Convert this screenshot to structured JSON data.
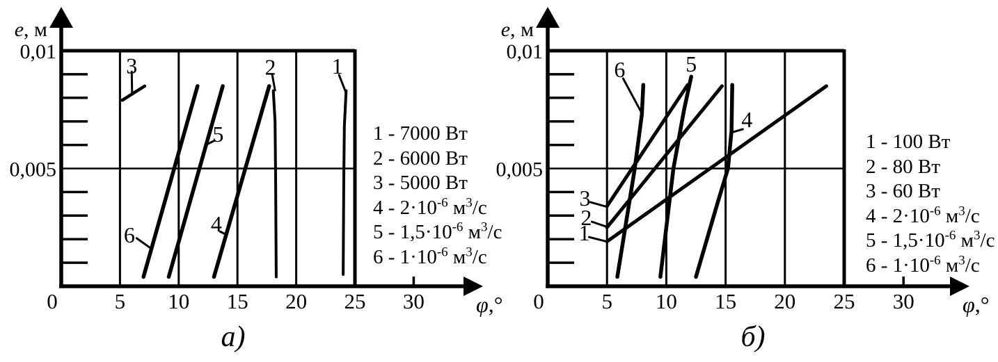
{
  "figure": {
    "background": "#ffffff",
    "ink": "#000000"
  },
  "chart_data": [
    {
      "id": "a",
      "type": "line",
      "caption": "а)",
      "xlabel": "φ,°",
      "ylabel": "e, м",
      "xlim": [
        0,
        25
      ],
      "ylim": [
        0,
        0.01
      ],
      "grid": "major-box",
      "legend_position": "right-of-plot",
      "xticks": [
        0,
        5,
        10,
        15,
        20,
        25,
        30
      ],
      "xgrid": [
        5,
        10,
        15,
        20
      ],
      "ytick_labels": [
        {
          "value": 0.01,
          "label": "0,01"
        },
        {
          "value": 0.005,
          "label": "0,005"
        }
      ],
      "minor_yticks": [
        0.001,
        0.002,
        0.003,
        0.004,
        0.006,
        0.007,
        0.008,
        0.009
      ],
      "series": [
        {
          "name": "1",
          "value": "7000 Вт",
          "width": 4,
          "points": [
            [
              24.0,
              0.0005
            ],
            [
              24.05,
              0.0045
            ],
            [
              24.1,
              0.0068
            ],
            [
              24.25,
              0.0083
            ]
          ]
        },
        {
          "name": "2",
          "value": "6000 Вт",
          "width": 4,
          "points": [
            [
              18.3,
              0.0004
            ],
            [
              18.25,
              0.0045
            ],
            [
              18.2,
              0.007
            ],
            [
              18.05,
              0.0083
            ]
          ]
        },
        {
          "name": "3",
          "value": "5000 Вт",
          "width": 4.5,
          "points": [
            [
              5.2,
              0.0079
            ],
            [
              7.1,
              0.0085
            ]
          ]
        },
        {
          "name": "4",
          "value": "2·10⁻⁶ м³/с",
          "width": 5.5,
          "points": [
            [
              13.0,
              0.0004
            ],
            [
              17.7,
              0.0085
            ]
          ]
        },
        {
          "name": "5",
          "value": "1,5·10⁻⁶ м³/с",
          "width": 5.5,
          "points": [
            [
              9.15,
              0.0004
            ],
            [
              13.75,
              0.0085
            ]
          ]
        },
        {
          "name": "6",
          "value": "1·10⁻⁶ м³/с",
          "width": 5.5,
          "points": [
            [
              7.0,
              0.0004
            ],
            [
              11.6,
              0.0085
            ]
          ]
        }
      ],
      "labels": [
        {
          "text": "1",
          "x": 23.5,
          "y": 0.00935,
          "leader": [
            [
              23.65,
              0.00897
            ],
            [
              24.22,
              0.00824
            ]
          ]
        },
        {
          "text": "2",
          "x": 17.8,
          "y": 0.0093,
          "leader": [
            [
              17.95,
              0.009
            ],
            [
              18.2,
              0.00832
            ]
          ]
        },
        {
          "text": "3",
          "x": 6.0,
          "y": 0.00937,
          "leader": [
            [
              6.0,
              0.00911
            ],
            [
              6.03,
              0.0082
            ]
          ]
        },
        {
          "text": "4",
          "x": 13.2,
          "y": 0.00266,
          "leader": [
            [
              13.5,
              0.00233
            ],
            [
              13.97,
              0.00221
            ]
          ]
        },
        {
          "text": "5",
          "x": 13.35,
          "y": 0.00646,
          "leader": [
            [
              13.05,
              0.00619
            ],
            [
              12.4,
              0.00602
            ]
          ]
        },
        {
          "text": "6",
          "x": 5.8,
          "y": 0.00218,
          "leader": [
            [
              6.42,
              0.00204
            ],
            [
              7.6,
              0.00162
            ]
          ]
        }
      ],
      "legend_rows": [
        [
          {
            "t": "1 - 7000 Вт"
          }
        ],
        [
          {
            "t": "2 - 6000 Вт"
          }
        ],
        [
          {
            "t": "3 - 5000 Вт"
          }
        ],
        [
          {
            "t": "4 - 2·10"
          },
          {
            "s": "-6"
          },
          {
            "t": " м"
          },
          {
            "s": "3"
          },
          {
            "t": "/с"
          }
        ],
        [
          {
            "t": "5 - 1,5·10"
          },
          {
            "s": "-6"
          },
          {
            "t": " м"
          },
          {
            "s": "3"
          },
          {
            "t": "/с"
          }
        ],
        [
          {
            "t": "6 - 1·10"
          },
          {
            "s": "-6"
          },
          {
            "t": " м"
          },
          {
            "s": "3"
          },
          {
            "t": "/с"
          }
        ]
      ]
    },
    {
      "id": "b",
      "type": "line",
      "caption": "б)",
      "xlabel": "φ,°",
      "ylabel": "e, м",
      "xlim": [
        0,
        25
      ],
      "ylim": [
        0,
        0.01
      ],
      "grid": "major-box",
      "legend_position": "right-of-plot",
      "xticks": [
        0,
        5,
        10,
        15,
        20,
        25,
        30
      ],
      "xgrid": [
        5,
        10,
        15,
        20
      ],
      "ytick_labels": [
        {
          "value": 0.01,
          "label": "0,01"
        },
        {
          "value": 0.005,
          "label": "0,005"
        }
      ],
      "minor_yticks": [
        0.001,
        0.002,
        0.003,
        0.004,
        0.006,
        0.007,
        0.008,
        0.009
      ],
      "series": [
        {
          "name": "1",
          "value": "100 Вт",
          "width": 5,
          "points": [
            [
              5.0,
              0.0019
            ],
            [
              23.5,
              0.0085
            ]
          ]
        },
        {
          "name": "2",
          "value": "80 Вт",
          "width": 5,
          "points": [
            [
              5.0,
              0.0025
            ],
            [
              14.7,
              0.0085
            ]
          ]
        },
        {
          "name": "3",
          "value": "60 Вт",
          "width": 5,
          "points": [
            [
              5.0,
              0.0034
            ],
            [
              11.8,
              0.00855
            ]
          ]
        },
        {
          "name": "4",
          "value": "2·10⁻⁶ м³/с",
          "width": 5.5,
          "points": [
            [
              12.5,
              0.0004
            ],
            [
              14.3,
              0.0035
            ],
            [
              15.2,
              0.005
            ],
            [
              15.5,
              0.0066
            ],
            [
              15.56,
              0.00855
            ]
          ]
        },
        {
          "name": "5",
          "value": "1,5·10⁻⁶ м³/с",
          "width": 5.5,
          "points": [
            [
              9.5,
              0.0004
            ],
            [
              10.6,
              0.005
            ],
            [
              11.5,
              0.0075
            ],
            [
              12.1,
              0.0089
            ]
          ]
        },
        {
          "name": "6",
          "value": "1·10⁻⁶ м³/с",
          "width": 5.5,
          "points": [
            [
              5.87,
              0.0004
            ],
            [
              7.34,
              0.005
            ],
            [
              7.94,
              0.0073
            ],
            [
              8.06,
              0.00855
            ]
          ]
        }
      ],
      "labels": [
        {
          "text": "6",
          "x": 6.07,
          "y": 0.0092,
          "leader": [
            [
              6.36,
              0.00882
            ],
            [
              7.9,
              0.00738
            ]
          ]
        },
        {
          "text": "5",
          "x": 12.1,
          "y": 0.00944,
          "leader": []
        },
        {
          "text": "4",
          "x": 16.8,
          "y": 0.00708,
          "leader": [
            [
              16.45,
              0.00667
            ],
            [
              15.65,
              0.00655
            ]
          ]
        },
        {
          "text": "3",
          "x": 3.14,
          "y": 0.00375,
          "leader": [
            [
              3.6,
              0.00357
            ],
            [
              4.95,
              0.00338
            ]
          ]
        },
        {
          "text": "2",
          "x": 3.25,
          "y": 0.00292,
          "leader": [
            [
              3.72,
              0.00274
            ],
            [
              5.0,
              0.00252
            ]
          ]
        },
        {
          "text": "1",
          "x": 3.08,
          "y": 0.00227,
          "leader": [
            [
              3.49,
              0.00209
            ],
            [
              4.95,
              0.0019
            ]
          ]
        }
      ],
      "legend_rows": [
        [
          {
            "t": "1 - 100 Вт"
          }
        ],
        [
          {
            "t": "2 - 80 Вт"
          }
        ],
        [
          {
            "t": "3 - 60 Вт"
          }
        ],
        [
          {
            "t": "4 - 2·10"
          },
          {
            "s": "-6"
          },
          {
            "t": " м"
          },
          {
            "s": "3"
          },
          {
            "t": "/с"
          }
        ],
        [
          {
            "t": "5 - 1,5·10"
          },
          {
            "s": "-6"
          },
          {
            "t": " м"
          },
          {
            "s": "3"
          },
          {
            "t": "/с"
          }
        ],
        [
          {
            "t": "6 - 1·10"
          },
          {
            "s": "-6"
          },
          {
            "t": " м"
          },
          {
            "s": "3"
          },
          {
            "t": "/с"
          }
        ]
      ]
    }
  ]
}
